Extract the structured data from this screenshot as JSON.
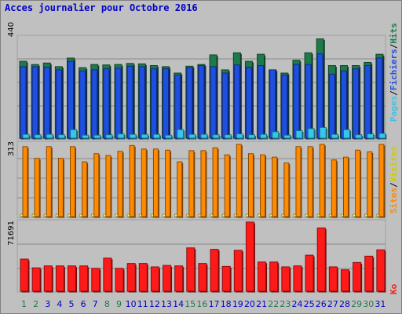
{
  "title": "Acces journalier pour Octobre 2016",
  "colors": {
    "visits": "#1e7a4b",
    "pages": "#1f4fe0",
    "files": "#36c6ec",
    "sites": "#ff8a00",
    "bandwidth": "#ff1a1a",
    "weekend_day": "#1e7a4b",
    "weekday": "#0000c8"
  },
  "chart_data": [
    {
      "type": "bar",
      "title": "Acces journalier pour Octobre 2016",
      "ymax_label": "440",
      "legend": {
        "pages": "Pages",
        "files": "Fichiers",
        "visits": "Hits"
      },
      "categories": [
        "1",
        "2",
        "3",
        "4",
        "5",
        "6",
        "7",
        "8",
        "9",
        "10",
        "11",
        "12",
        "13",
        "14",
        "15",
        "16",
        "17",
        "18",
        "19",
        "20",
        "21",
        "22",
        "23",
        "24",
        "25",
        "26",
        "27",
        "28",
        "29",
        "30",
        "31"
      ],
      "weekend": [
        "1",
        "2",
        "8",
        "9",
        "15",
        "16",
        "22",
        "23",
        "29",
        "30"
      ],
      "series": [
        {
          "name": "Hits",
          "values": [
            360,
            345,
            352,
            335,
            375,
            330,
            345,
            343,
            345,
            350,
            348,
            340,
            335,
            305,
            337,
            345,
            390,
            320,
            400,
            360,
            393,
            320,
            305,
            365,
            400,
            465,
            340,
            340,
            340,
            355,
            393
          ]
        },
        {
          "name": "Pages",
          "values": [
            335,
            335,
            333,
            320,
            360,
            315,
            320,
            325,
            328,
            337,
            335,
            325,
            325,
            295,
            330,
            340,
            335,
            305,
            343,
            332,
            340,
            320,
            295,
            345,
            345,
            395,
            300,
            315,
            325,
            340,
            375
          ]
        },
        {
          "name": "Fichiers",
          "values": [
            18,
            16,
            18,
            16,
            40,
            14,
            14,
            16,
            20,
            18,
            18,
            18,
            14,
            40,
            18,
            18,
            16,
            16,
            20,
            16,
            18,
            30,
            14,
            35,
            45,
            50,
            18,
            40,
            16,
            20,
            22
          ]
        }
      ]
    },
    {
      "type": "bar",
      "ymax_label": "313",
      "legend": {
        "sites": "Sites",
        "visits": "Visites"
      },
      "categories": [
        "1",
        "2",
        "3",
        "4",
        "5",
        "6",
        "7",
        "8",
        "9",
        "10",
        "11",
        "12",
        "13",
        "14",
        "15",
        "16",
        "17",
        "18",
        "19",
        "20",
        "21",
        "22",
        "23",
        "24",
        "25",
        "26",
        "27",
        "28",
        "29",
        "30",
        "31"
      ],
      "series": [
        {
          "name": "Visites",
          "values": [
            8,
            6,
            8,
            6,
            6,
            4,
            6,
            6,
            6,
            4,
            6,
            6,
            6,
            6,
            6,
            6,
            6,
            4,
            6,
            6,
            6,
            6,
            6,
            8,
            8,
            8,
            4,
            6,
            6,
            4,
            6
          ]
        },
        {
          "name": "Sites",
          "values": [
            300,
            250,
            300,
            250,
            300,
            235,
            270,
            262,
            280,
            305,
            290,
            290,
            285,
            235,
            283,
            283,
            295,
            265,
            310,
            270,
            265,
            255,
            230,
            300,
            300,
            310,
            243,
            255,
            285,
            278,
            310
          ]
        }
      ]
    },
    {
      "type": "bar",
      "ymax_label": "71691",
      "legend": {
        "bandwidth": "Ko"
      },
      "categories": [
        "1",
        "2",
        "3",
        "4",
        "5",
        "6",
        "7",
        "8",
        "9",
        "10",
        "11",
        "12",
        "13",
        "14",
        "15",
        "16",
        "17",
        "18",
        "19",
        "20",
        "21",
        "22",
        "23",
        "24",
        "25",
        "26",
        "27",
        "28",
        "29",
        "30",
        "31"
      ],
      "series": [
        {
          "name": "Ko",
          "values": [
            33000,
            24000,
            26000,
            26000,
            26000,
            26000,
            23500,
            34000,
            23500,
            28500,
            28500,
            25000,
            26500,
            26000,
            44500,
            28500,
            43000,
            25500,
            42000,
            71000,
            30000,
            30000,
            25000,
            26000,
            37000,
            65000,
            25000,
            22000,
            29500,
            36000,
            42500
          ]
        }
      ]
    }
  ]
}
